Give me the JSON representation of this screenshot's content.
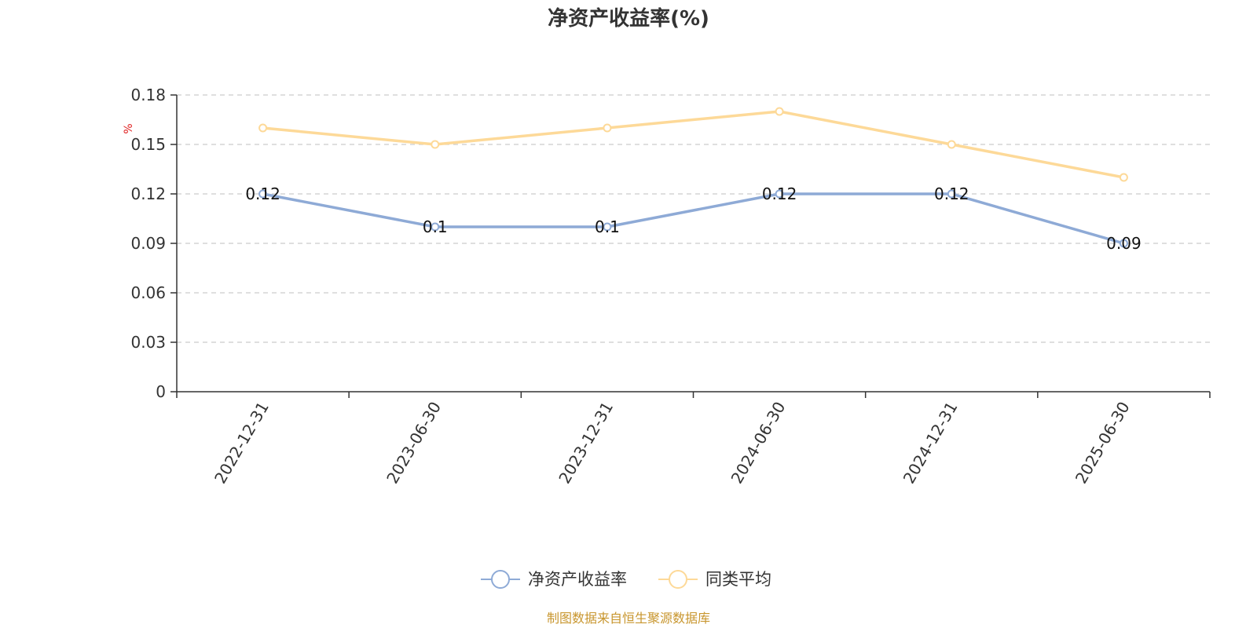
{
  "chart_data": {
    "type": "line",
    "title": "净资产收益率(%)",
    "ylabel": "%",
    "ylim": [
      0,
      0.18
    ],
    "yticks": [
      "0",
      "0.03",
      "0.06",
      "0.09",
      "0.12",
      "0.15",
      "0.18"
    ],
    "grid": true,
    "legend_position": "bottom",
    "categories": [
      "2022-12-31",
      "2023-06-30",
      "2023-12-31",
      "2024-06-30",
      "2024-12-31",
      "2025-06-30"
    ],
    "series": [
      {
        "name": "净资产收益率",
        "values": [
          0.12,
          0.1,
          0.1,
          0.12,
          0.12,
          0.09
        ],
        "labels": [
          "0.12",
          "0.1",
          "0.1",
          "0.12",
          "0.12",
          "0.09"
        ],
        "color": "#8eaad6",
        "show_labels": true
      },
      {
        "name": "同类平均",
        "values": [
          0.16,
          0.15,
          0.16,
          0.17,
          0.15,
          0.13
        ],
        "color": "#fdd998",
        "show_labels": false
      }
    ]
  },
  "footer": {
    "source": "制图数据来自恒生聚源数据库",
    "source_color": "#c8962e"
  },
  "colors": {
    "unit_label": "#e02020",
    "axis": "#333333",
    "grid": "#cccccc"
  }
}
